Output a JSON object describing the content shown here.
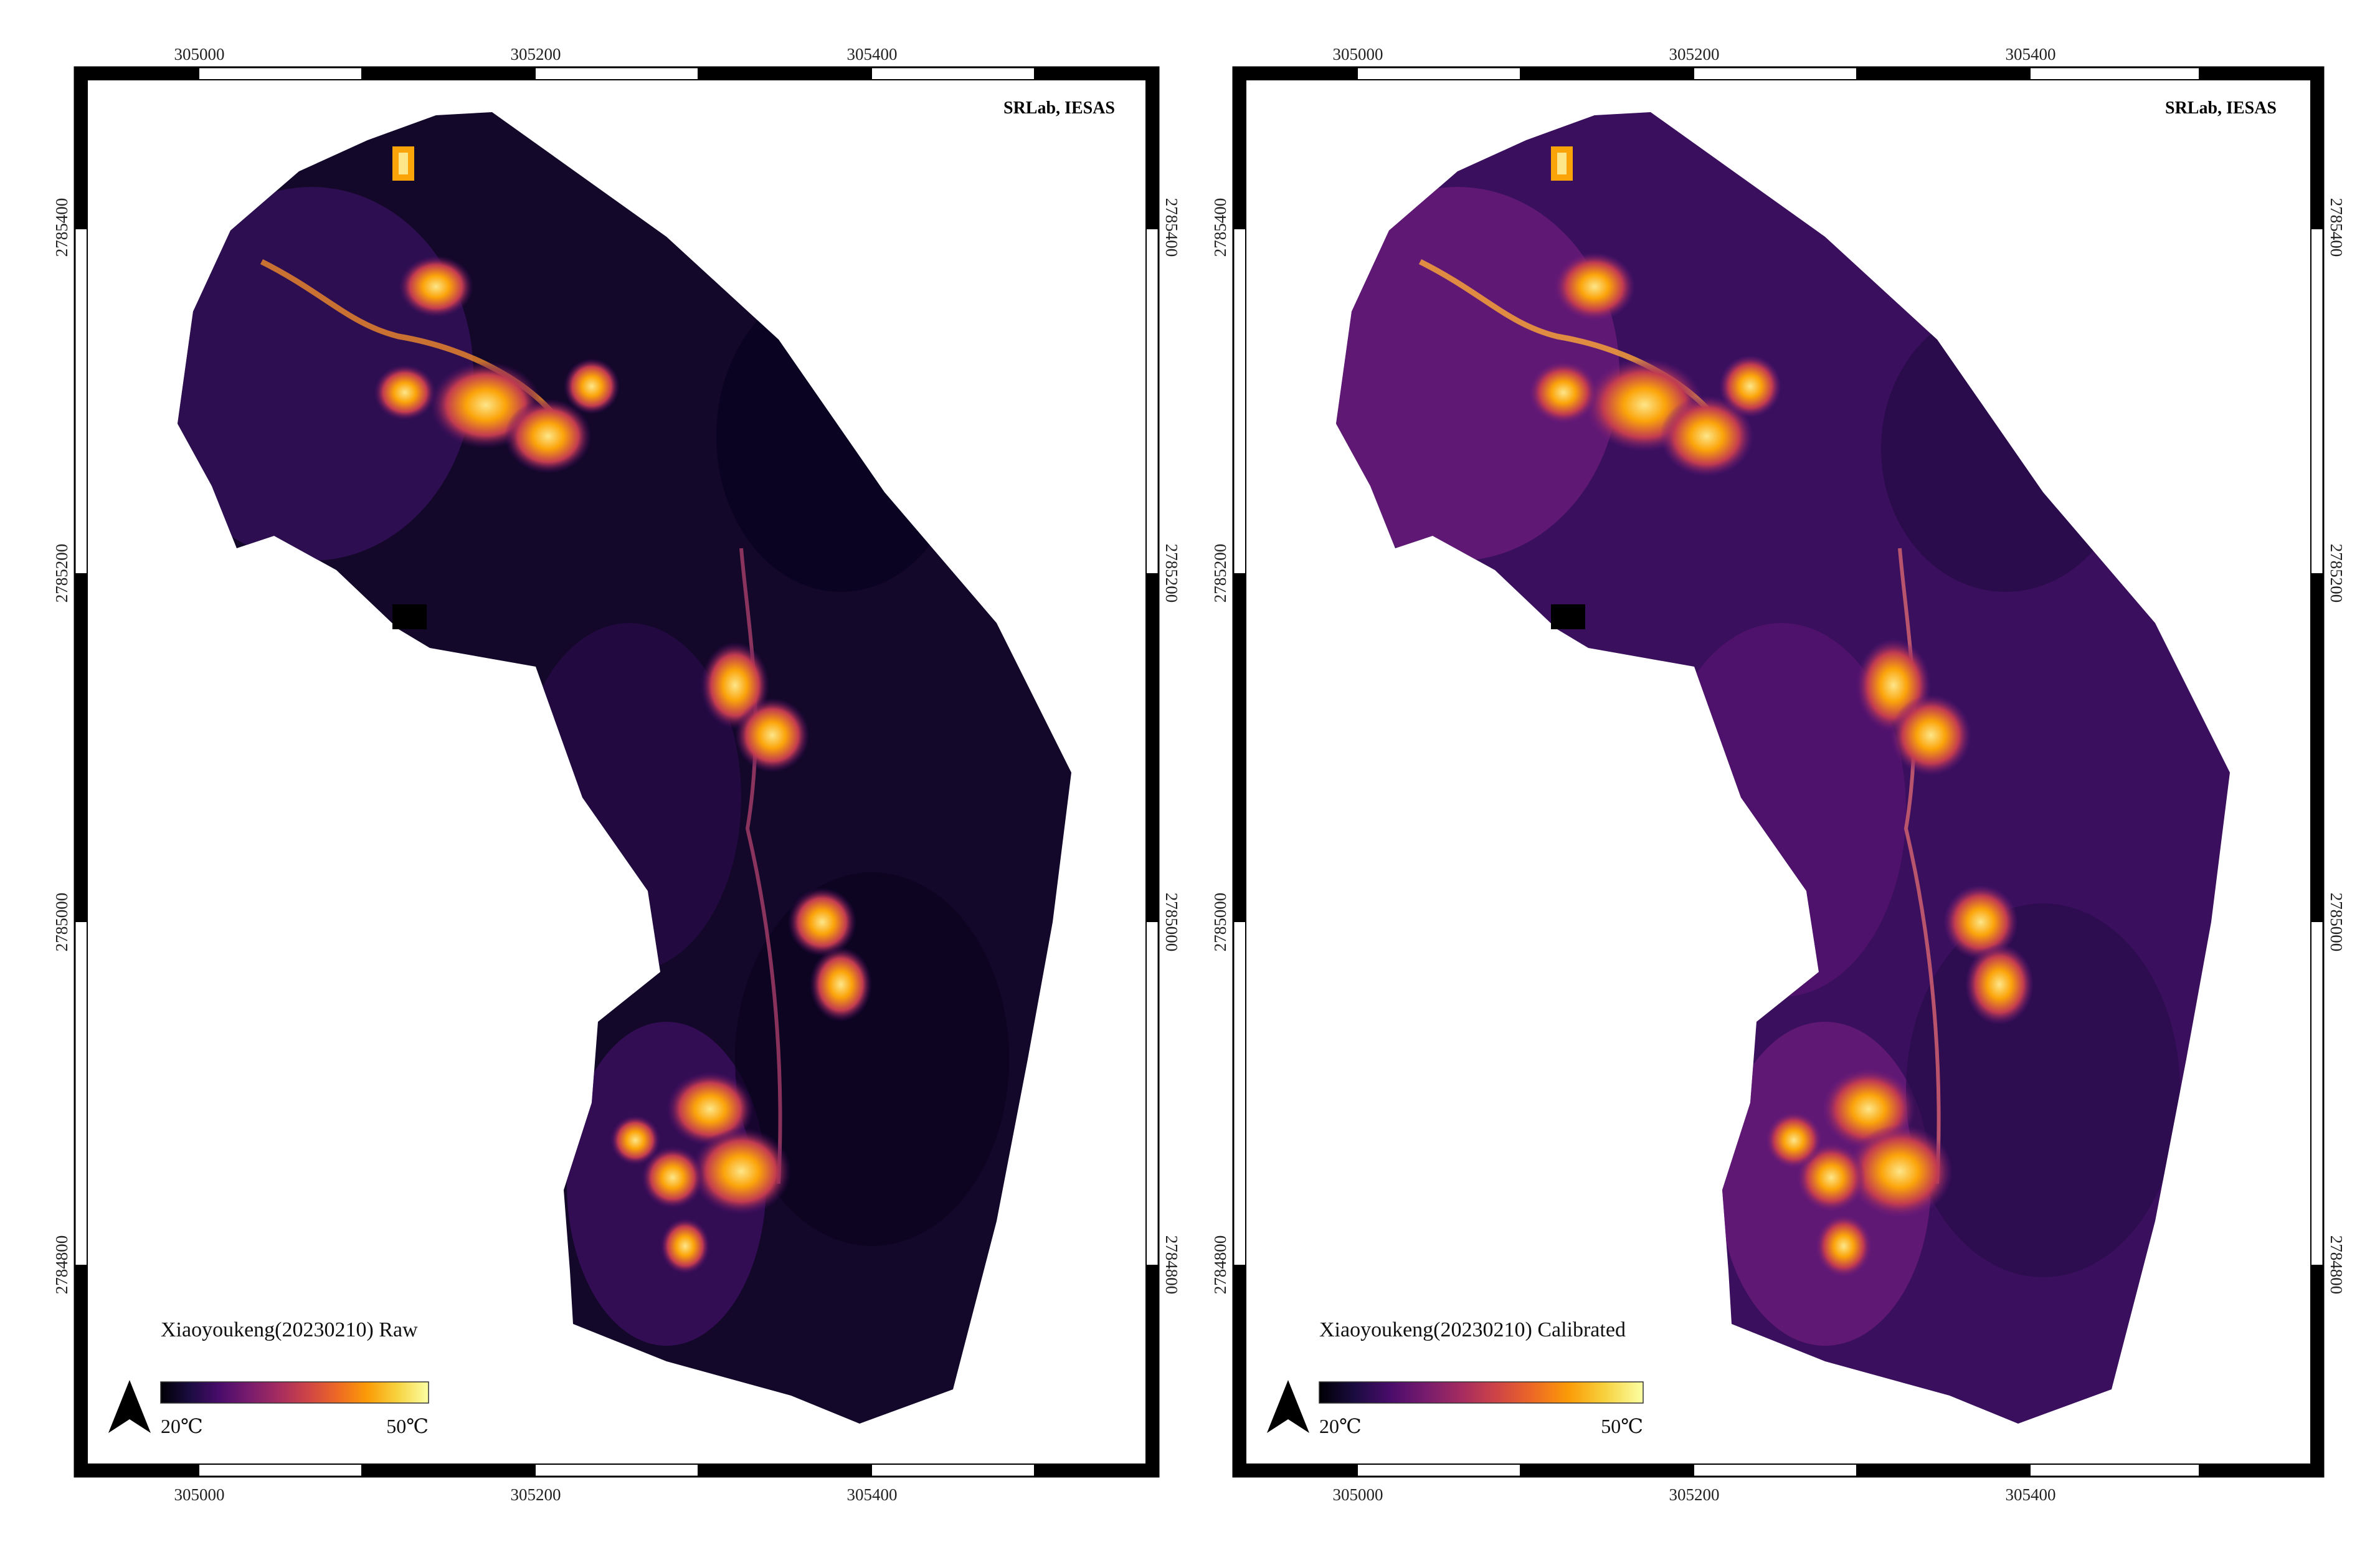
{
  "maps": [
    {
      "title": "Xiaoyoukeng(20230210) Raw",
      "credit": "SRLab, IESAS",
      "x_ticks": [
        "305000",
        "305200",
        "305400"
      ],
      "y_ticks": [
        "2785400",
        "2785200",
        "2785000",
        "2784800"
      ],
      "legend": {
        "min_label": "20℃",
        "max_label": "50℃"
      },
      "north_arrow": "north-arrow-icon",
      "colormap": "inferno",
      "background_intensity": "dark"
    },
    {
      "title": "Xiaoyoukeng(20230210) Calibrated",
      "credit": "SRLab, IESAS",
      "x_ticks": [
        "305000",
        "305200",
        "305400"
      ],
      "y_ticks": [
        "2785400",
        "2785200",
        "2785000",
        "2784800"
      ],
      "legend": {
        "min_label": "20℃",
        "max_label": "50℃"
      },
      "north_arrow": "north-arrow-icon",
      "colormap": "inferno",
      "background_intensity": "medium"
    }
  ],
  "colors": {
    "inferno": [
      "#000004",
      "#1b0c41",
      "#4a0c6b",
      "#781c6d",
      "#a52c60",
      "#cf4446",
      "#ed6925",
      "#fb9b06",
      "#f7d13d",
      "#fcffa4"
    ],
    "raw_background": "#13072a",
    "calibrated_background": "#3a0f5e",
    "hot_spot": "#fba40a",
    "hottest": "#fde68a"
  }
}
